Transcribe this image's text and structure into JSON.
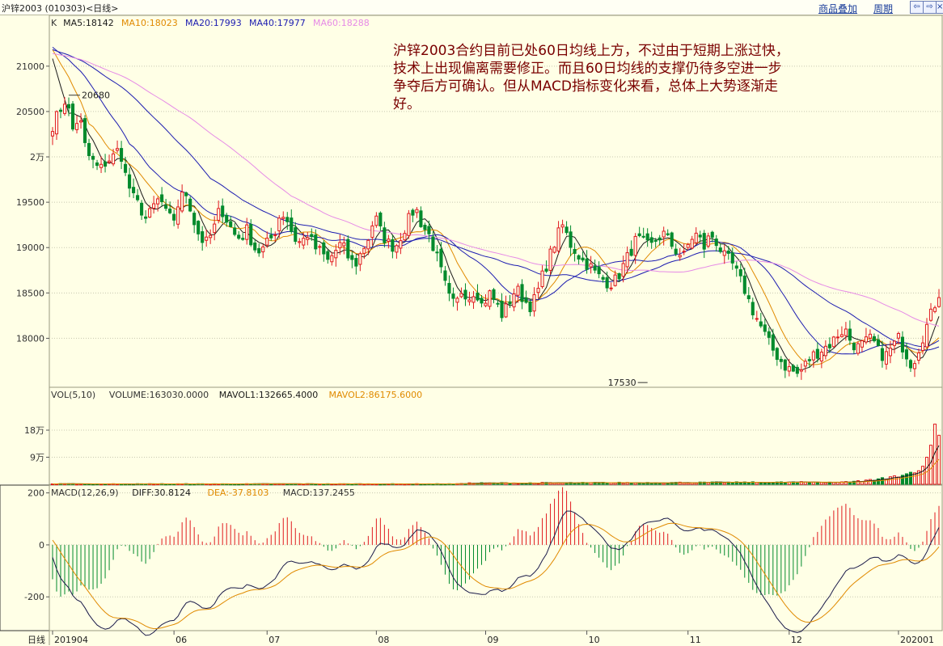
{
  "window": {
    "title": "沪锌2003 (010303)<日线>",
    "links": [
      "商品叠加",
      "周期"
    ],
    "nav_icons": [
      "arrow-left-icon",
      "arrow-right-icon",
      "close-icon"
    ]
  },
  "annotation": "沪锌2003合约目前已处60日均线上方，不过由于短期上涨过快，技术上出现偏离需要修正。而且60日均线的支撑仍待多空进一步争夺后方可确认。但从MACD指标变化来看，总体上大势逐渐走好。",
  "chart_data": [
    {
      "type": "candlestick",
      "name": "price",
      "legend": [
        {
          "text": "K",
          "color": "#333333"
        },
        {
          "text": "MA5:18142",
          "color": "#1A1A1A"
        },
        {
          "text": "MA10:18023",
          "color": "#E08A00"
        },
        {
          "text": "MA20:17993",
          "color": "#1C1CB0"
        },
        {
          "text": "MA40:17977",
          "color": "#1C1CB0"
        },
        {
          "text": "MA60:18288",
          "color": "#E68AE6"
        }
      ],
      "y_ticks": [
        {
          "value": 21000,
          "label": "21000"
        },
        {
          "value": 20500,
          "label": "20500"
        },
        {
          "value": 20000,
          "label": "2万"
        },
        {
          "value": 19500,
          "label": "19500"
        },
        {
          "value": 19000,
          "label": "19000"
        },
        {
          "value": 18500,
          "label": "18500"
        },
        {
          "value": 18000,
          "label": "18000"
        }
      ],
      "ylim": [
        17460,
        21560
      ],
      "annotations": [
        {
          "label": "20680",
          "index": 4,
          "value": 20680
        },
        {
          "label": "17530",
          "index": 147,
          "value": 17530
        }
      ],
      "close_path": [
        20350,
        20500,
        20650,
        20300,
        20450,
        20050,
        19950,
        19850,
        19950,
        20000,
        20100,
        19750,
        19550,
        19450,
        19300,
        19450,
        19550,
        19350,
        19300,
        19550,
        19600,
        19300,
        19100,
        19050,
        19200,
        19450,
        19300,
        19150,
        19100,
        19200,
        19000,
        18950,
        19050,
        19150,
        19400,
        19300,
        19100,
        19050,
        19150,
        19000,
        18950,
        18850,
        18950,
        19050,
        18900,
        18800,
        18950,
        19100,
        19350,
        19150,
        19050,
        19000,
        19150,
        19300,
        19450,
        19250,
        19150,
        18950,
        18700,
        18450,
        18350,
        18550,
        18450,
        18550,
        18350,
        18500,
        18400,
        18250,
        18400,
        18550,
        18450,
        18350,
        18450,
        18700,
        18900,
        19100,
        19250,
        19050,
        18950,
        18850,
        18800,
        18700,
        18650,
        18600,
        18650,
        18800,
        18950,
        19100,
        19050,
        19000,
        19100,
        19150,
        19050,
        18950,
        18900,
        19100,
        19150,
        19000,
        19150,
        19050,
        18900,
        18850,
        18700,
        18550,
        18350,
        18200,
        18050,
        17900,
        17800,
        17700,
        17650,
        17600,
        17700,
        17800,
        17850,
        17900,
        17950,
        18050,
        18100,
        17950,
        17900,
        17950,
        18000,
        17850,
        17800,
        17900,
        18000,
        17850,
        17700,
        17900,
        18100,
        18300,
        18500
      ],
      "highlight_indices": [
        4,
        147
      ]
    },
    {
      "type": "bar",
      "name": "volume",
      "legend": [
        {
          "text": "VOL(5,10)",
          "color": "#333333"
        },
        {
          "text": "VOLUME:163030.0000",
          "color": "#333333"
        },
        {
          "text": "MAVOL1:132665.4000",
          "color": "#1A1A1A"
        },
        {
          "text": "MAVOL2:86175.6000",
          "color": "#E08A00"
        }
      ],
      "y_ticks": [
        {
          "value": 180000,
          "label": "18万"
        },
        {
          "value": 90000,
          "label": "9万"
        }
      ],
      "ylim": [
        0,
        215000
      ],
      "recent_values": [
        8000,
        9000,
        7000,
        10000,
        12000,
        9000,
        14000,
        16000,
        13000,
        18000,
        22000,
        17000,
        25000,
        28000,
        24000,
        30000,
        35000,
        40000,
        38000,
        45000,
        60000,
        90000,
        130000,
        200000,
        163030
      ]
    },
    {
      "type": "bar",
      "name": "macd",
      "legend": [
        {
          "text": "MACD(12,26,9)",
          "color": "#333333"
        },
        {
          "text": "DIFF:30.8124",
          "color": "#1A1A1A"
        },
        {
          "text": "DEA:-37.8103",
          "color": "#E08A00"
        },
        {
          "text": "MACD:137.2455",
          "color": "#333333"
        }
      ],
      "y_ticks": [
        {
          "value": 200,
          "label": "200"
        },
        {
          "value": 0,
          "label": "0"
        },
        {
          "value": -200,
          "label": "-200"
        }
      ],
      "ylim": [
        -330,
        230
      ]
    }
  ],
  "x_axis": {
    "period_label": "日线",
    "ticks": [
      {
        "index": 0,
        "label": "201904"
      },
      {
        "index": 30,
        "label": "06"
      },
      {
        "index": 53,
        "label": "07"
      },
      {
        "index": 80,
        "label": "08"
      },
      {
        "index": 107,
        "label": "09"
      },
      {
        "index": 132,
        "label": "10"
      },
      {
        "index": 157,
        "label": "11"
      },
      {
        "index": 182,
        "label": "12"
      },
      {
        "index": 209,
        "label": "202001"
      }
    ]
  }
}
